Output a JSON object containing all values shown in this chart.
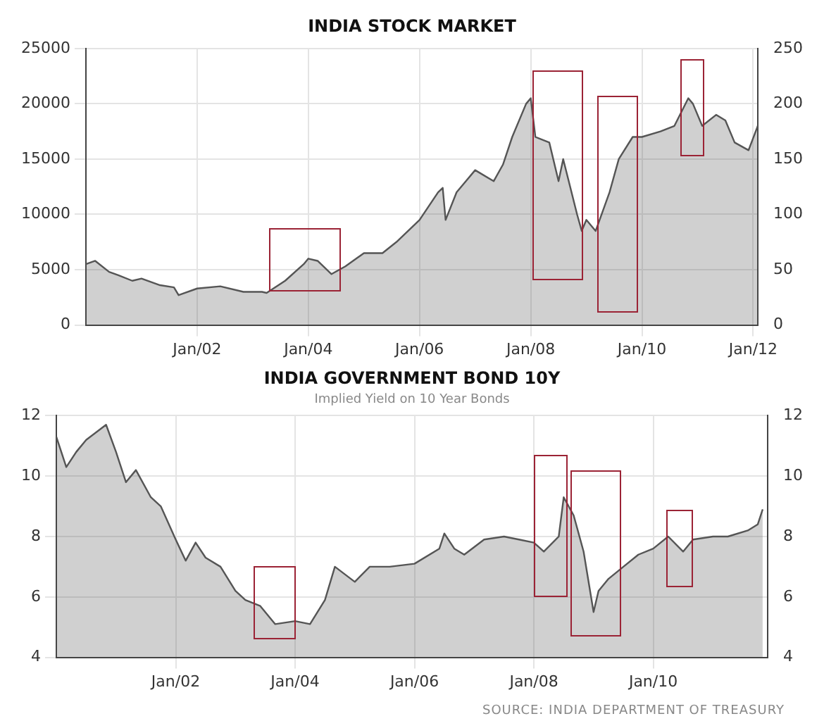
{
  "chart_data": [
    {
      "type": "area",
      "title": "INDIA STOCK MARKET",
      "grid": true,
      "xlim": [
        "2000-01",
        "2012-02"
      ],
      "xticks": [
        {
          "value": "2002-01",
          "label": "Jan/02"
        },
        {
          "value": "2004-01",
          "label": "Jan/04"
        },
        {
          "value": "2006-01",
          "label": "Jan/06"
        },
        {
          "value": "2008-01",
          "label": "Jan/08"
        },
        {
          "value": "2010-01",
          "label": "Jan/10"
        },
        {
          "value": "2012-01",
          "label": "Jan/12"
        }
      ],
      "ylim": [
        0,
        25000
      ],
      "yticks": [
        0,
        5000,
        10000,
        15000,
        20000,
        25000
      ],
      "y2lim": [
        0,
        250
      ],
      "y2ticks": [
        0,
        50,
        100,
        150,
        200,
        250
      ],
      "series": [
        {
          "color": "#555555",
          "x": [
            "2000-01",
            "2000-03",
            "2000-06",
            "2000-08",
            "2000-11",
            "2001-01",
            "2001-05",
            "2001-08",
            "2001-09",
            "2002-01",
            "2002-06",
            "2002-11",
            "2003-03",
            "2003-04",
            "2003-08",
            "2003-12",
            "2004-01",
            "2004-03",
            "2004-06",
            "2004-09",
            "2005-01",
            "2005-05",
            "2005-08",
            "2006-01",
            "2006-05",
            "2006-06",
            "2006-06-20",
            "2006-09",
            "2007-01",
            "2007-05",
            "2007-07",
            "2007-09",
            "2007-12",
            "2008-01",
            "2008-02",
            "2008-05",
            "2008-07",
            "2008-08",
            "2008-11",
            "2008-12",
            "2009-01",
            "2009-03",
            "2009-06",
            "2009-08",
            "2009-11",
            "2010-01",
            "2010-05",
            "2010-08",
            "2010-11",
            "2010-12",
            "2011-02",
            "2011-05",
            "2011-07",
            "2011-09",
            "2011-12",
            "2012-02"
          ],
          "values": [
            5500,
            5800,
            4800,
            4500,
            4000,
            4200,
            3600,
            3400,
            2700,
            3300,
            3500,
            3000,
            3000,
            2900,
            4000,
            5500,
            6000,
            5800,
            4600,
            5300,
            6500,
            6500,
            7500,
            9500,
            12000,
            12400,
            9500,
            12000,
            14000,
            13000,
            14500,
            17000,
            20000,
            20500,
            17000,
            16500,
            13000,
            15000,
            10000,
            8500,
            9500,
            8500,
            12000,
            15000,
            17000,
            17000,
            17500,
            18000,
            20500,
            20000,
            18000,
            19000,
            18500,
            16500,
            15800,
            18000
          ]
        }
      ]
    },
    {
      "type": "area",
      "title": "INDIA GOVERNMENT BOND 10Y",
      "subtitle": "Implied Yield on 10 Year Bonds",
      "grid": true,
      "xlim": [
        "2000-01",
        "2011-12"
      ],
      "xticks": [
        {
          "value": "2002-01",
          "label": "Jan/02"
        },
        {
          "value": "2004-01",
          "label": "Jan/04"
        },
        {
          "value": "2006-01",
          "label": "Jan/06"
        },
        {
          "value": "2008-01",
          "label": "Jan/08"
        },
        {
          "value": "2010-01",
          "label": "Jan/10"
        }
      ],
      "ylim": [
        4,
        12
      ],
      "yticks": [
        4,
        6,
        8,
        10,
        12
      ],
      "y2lim": [
        4,
        12
      ],
      "y2ticks": [
        4,
        6,
        8,
        10,
        12
      ],
      "annotations": [
        "SOURCE: INDIA DEPARTMENT OF TREASURY"
      ],
      "series": [
        {
          "color": "#555555",
          "x": [
            "2000-01",
            "2000-03",
            "2000-05",
            "2000-07",
            "2000-11",
            "2001-01",
            "2001-03",
            "2001-05",
            "2001-08",
            "2001-10",
            "2002-01",
            "2002-03",
            "2002-05",
            "2002-07",
            "2002-10",
            "2003-01",
            "2003-03",
            "2003-06",
            "2003-09",
            "2004-01",
            "2004-04",
            "2004-07",
            "2004-09",
            "2005-01",
            "2005-04",
            "2005-08",
            "2006-01",
            "2006-06",
            "2006-07",
            "2006-09",
            "2006-11",
            "2007-03",
            "2007-07",
            "2007-10",
            "2008-01",
            "2008-03",
            "2008-06",
            "2008-07",
            "2008-09",
            "2008-11",
            "2009-01",
            "2009-02",
            "2009-04",
            "2009-07",
            "2009-10",
            "2010-01",
            "2010-04",
            "2010-07",
            "2010-09",
            "2011-01",
            "2011-04",
            "2011-08",
            "2011-10",
            "2011-11"
          ],
          "values": [
            11.3,
            10.3,
            10.8,
            11.2,
            11.7,
            10.8,
            9.8,
            10.2,
            9.3,
            9.0,
            7.9,
            7.2,
            7.8,
            7.3,
            7.0,
            6.2,
            5.9,
            5.7,
            5.1,
            5.2,
            5.1,
            5.9,
            7.0,
            6.5,
            7.0,
            7.0,
            7.1,
            7.6,
            8.1,
            7.6,
            7.4,
            7.9,
            8.0,
            7.9,
            7.8,
            7.5,
            8.0,
            9.3,
            8.7,
            7.5,
            5.5,
            6.2,
            6.6,
            7.0,
            7.4,
            7.6,
            8.0,
            7.5,
            7.9,
            8.0,
            8.0,
            8.2,
            8.4,
            8.9
          ]
        }
      ]
    }
  ]
}
